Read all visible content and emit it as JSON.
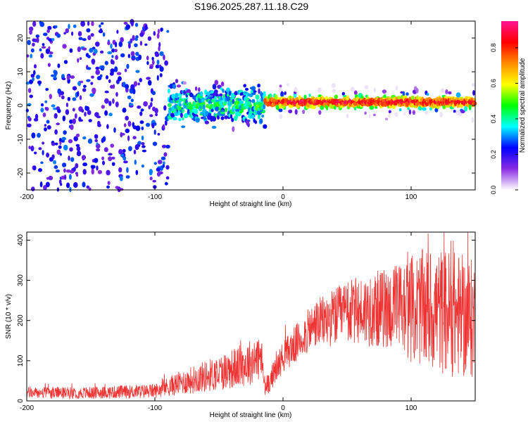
{
  "title": "S196.2025.287.11.18.C29",
  "chart_data": [
    {
      "type": "heatmap",
      "title": "S196.2025.287.11.18.C29",
      "xlabel": "Height of straight line (km)",
      "ylabel": "Frequency (Hz)",
      "xlim": [
        -200,
        150
      ],
      "ylim": [
        -25,
        25
      ],
      "xticks": [
        -200,
        -100,
        0,
        100
      ],
      "yticks": [
        -20,
        -10,
        0,
        10,
        20
      ],
      "colorbar": {
        "label": "Normalized spectral amplitude",
        "range": [
          0.0,
          0.95
        ],
        "ticks": [
          "0.0",
          "0.2",
          "0.4",
          "0.6",
          "0.8"
        ],
        "colormap": [
          "#ffffff",
          "#8a2be2",
          "#0000ff",
          "#00ffff",
          "#00ff00",
          "#ffff00",
          "#ff8c00",
          "#ff0000",
          "#ff1493"
        ]
      },
      "regions": [
        {
          "x_range": [
            -200,
            -90
          ],
          "description": "broadband noise",
          "freq_spread": 25,
          "amplitude": 0.12,
          "density": 0.55
        },
        {
          "x_range": [
            -90,
            -15
          ],
          "description": "emerging signal",
          "freq_spread": 6,
          "amplitude": 0.3,
          "density": 0.9
        },
        {
          "x_range": [
            -15,
            150
          ],
          "description": "narrow tone",
          "freq_spread": 2,
          "amplitude": 0.85,
          "density": 1.0
        }
      ]
    },
    {
      "type": "line",
      "xlabel": "Height of straight line (km)",
      "ylabel": "SNR (10 * v/v)",
      "xlim": [
        -200,
        150
      ],
      "ylim": [
        0,
        420
      ],
      "xticks": [
        -200,
        -100,
        0,
        100
      ],
      "yticks": [
        0,
        100,
        200,
        300,
        400
      ],
      "color": "#ee3333",
      "envelope": [
        {
          "x": -200,
          "mean": 20,
          "spread": 14
        },
        {
          "x": -150,
          "mean": 20,
          "spread": 15
        },
        {
          "x": -100,
          "mean": 25,
          "spread": 18
        },
        {
          "x": -80,
          "mean": 45,
          "spread": 30
        },
        {
          "x": -50,
          "mean": 70,
          "spread": 45
        },
        {
          "x": -30,
          "mean": 90,
          "spread": 55
        },
        {
          "x": -17,
          "mean": 110,
          "spread": 60
        },
        {
          "x": -14,
          "mean": 30,
          "spread": 25
        },
        {
          "x": 0,
          "mean": 110,
          "spread": 40
        },
        {
          "x": 25,
          "mean": 190,
          "spread": 60
        },
        {
          "x": 50,
          "mean": 220,
          "spread": 80
        },
        {
          "x": 80,
          "mean": 230,
          "spread": 100
        },
        {
          "x": 110,
          "mean": 230,
          "spread": 150
        },
        {
          "x": 130,
          "mean": 220,
          "spread": 160
        },
        {
          "x": 150,
          "mean": 200,
          "spread": 150
        }
      ]
    }
  ]
}
